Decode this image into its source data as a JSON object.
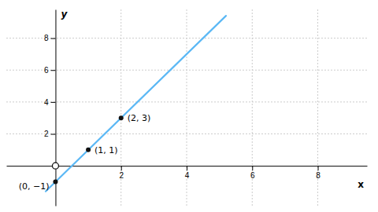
{
  "chart_data": {
    "type": "line",
    "xlabel": "x",
    "ylabel": "y",
    "xlim": [
      -1.5,
      9.5
    ],
    "ylim": [
      -2.5,
      9.8
    ],
    "xticks": [
      2,
      4,
      6,
      8
    ],
    "yticks": [
      2,
      4,
      6,
      8
    ],
    "grid": true,
    "series": [
      {
        "type": "line",
        "color": "#5BB8F5",
        "x": [
          -0.3,
          5.2
        ],
        "values": [
          -1.6,
          9.4
        ]
      },
      {
        "type": "scatter",
        "marker": "circle",
        "color": "#111111",
        "x": [
          0,
          1,
          2
        ],
        "values": [
          -1,
          1,
          3
        ]
      },
      {
        "type": "scatter",
        "marker": "open-circle",
        "color": "#111111",
        "x": [
          0
        ],
        "values": [
          0
        ]
      }
    ],
    "annotations": [
      {
        "text": "(0, −1)",
        "x": 0,
        "y": -1
      },
      {
        "text": "(1, 1)",
        "x": 1,
        "y": 1
      },
      {
        "text": "(2, 3)",
        "x": 2,
        "y": 3
      }
    ]
  }
}
